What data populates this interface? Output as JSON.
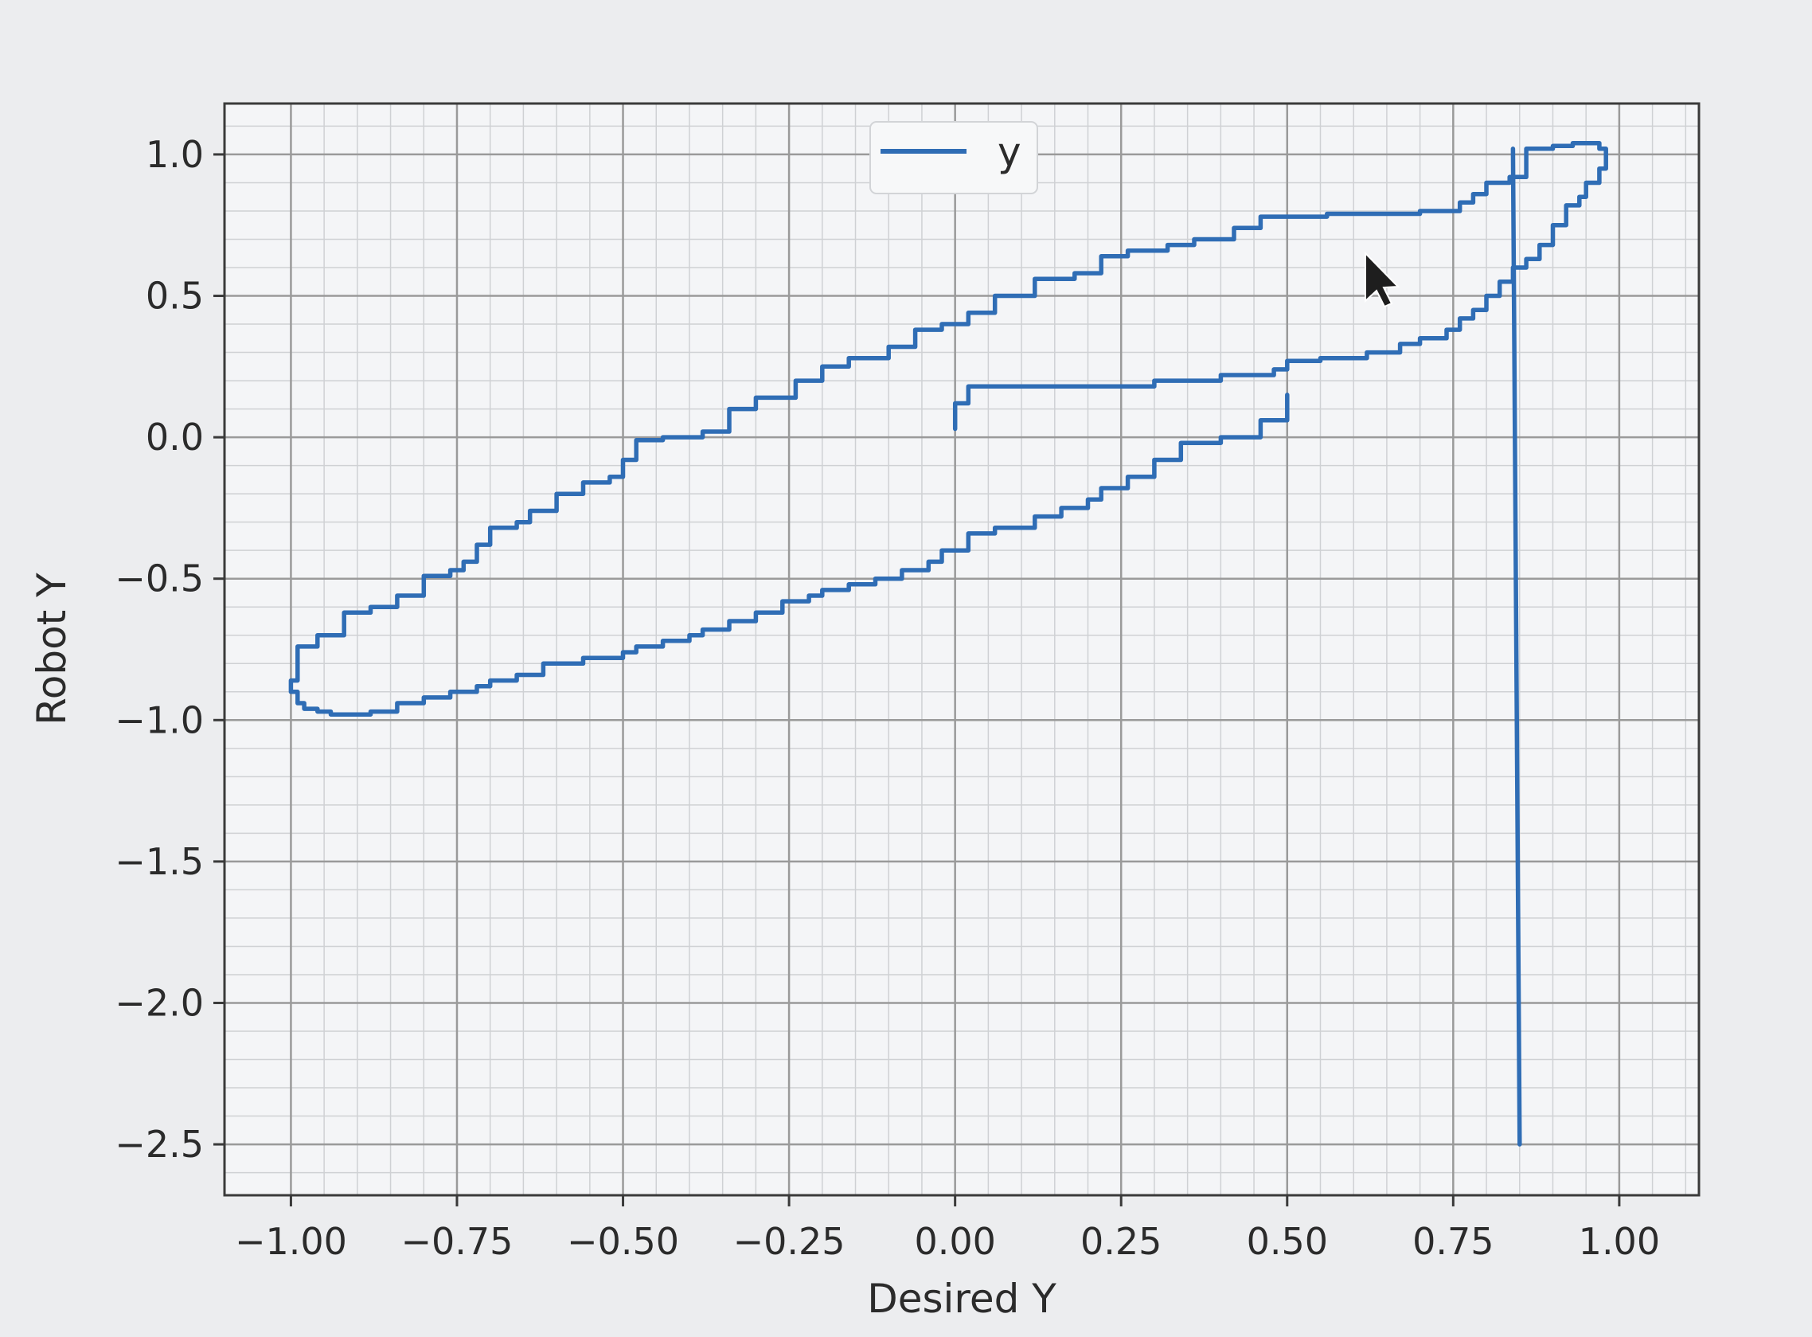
{
  "colors": {
    "series": "#2f6db5",
    "grid_major": "#9a9a9a",
    "grid_minor": "#cfd1d4",
    "axes": "#3a3a3a",
    "background": "#ecedef"
  },
  "chart_data": {
    "type": "line",
    "title": "",
    "xlabel": "Desired Y",
    "ylabel": "Robot Y",
    "xlim": [
      -1.1,
      1.12
    ],
    "ylim": [
      -2.68,
      1.18
    ],
    "xticks": [
      -1.0,
      -0.75,
      -0.5,
      -0.25,
      0.0,
      0.25,
      0.5,
      0.75,
      1.0
    ],
    "xtick_labels": [
      "−1.00",
      "−0.75",
      "−0.50",
      "−0.25",
      "0.00",
      "0.25",
      "0.50",
      "0.75",
      "1.00"
    ],
    "yticks": [
      1.0,
      0.5,
      0.0,
      -0.5,
      -1.0,
      -1.5,
      -2.0,
      -2.5
    ],
    "ytick_labels": [
      "1.0",
      "0.5",
      "0.0",
      "−0.5",
      "−1.0",
      "−1.5",
      "−2.0",
      "−2.5"
    ],
    "grid": true,
    "minor_grid": true,
    "legend_position": "upper-center",
    "series": [
      {
        "name": "y",
        "x": [
          0.0,
          0.0,
          0.02,
          0.04,
          0.2,
          0.3,
          0.35,
          0.4,
          0.48,
          0.5,
          0.55,
          0.62,
          0.67,
          0.7,
          0.74,
          0.76,
          0.78,
          0.8,
          0.82,
          0.84,
          0.86,
          0.88,
          0.9,
          0.92,
          0.94,
          0.95,
          0.97,
          0.98,
          0.98,
          0.97,
          0.96,
          0.95,
          0.93,
          0.9,
          0.88,
          0.86,
          0.86,
          0.84,
          0.835,
          0.8,
          0.78,
          0.76,
          0.72,
          0.7,
          0.66,
          0.62,
          0.56,
          0.5,
          0.46,
          0.42,
          0.36,
          0.32,
          0.26,
          0.22,
          0.18,
          0.12,
          0.06,
          0.02,
          -0.02,
          -0.06,
          -0.1,
          -0.16,
          -0.2,
          -0.24,
          -0.3,
          -0.34,
          -0.38,
          -0.44,
          -0.48,
          -0.5,
          -0.52,
          -0.56,
          -0.6,
          -0.64,
          -0.66,
          -0.7,
          -0.72,
          -0.74,
          -0.76,
          -0.8,
          -0.84,
          -0.88,
          -0.92,
          -0.96,
          -0.99,
          -1.0,
          -0.99,
          -0.98,
          -0.96,
          -0.94,
          -0.92,
          -0.9,
          -0.88,
          -0.84,
          -0.8,
          -0.76,
          -0.72,
          -0.7,
          -0.66,
          -0.62,
          -0.56,
          -0.5,
          -0.48,
          -0.44,
          -0.4,
          -0.38,
          -0.34,
          -0.3,
          -0.26,
          -0.22,
          -0.2,
          -0.16,
          -0.12,
          -0.08,
          -0.04,
          -0.02,
          0.02,
          0.06,
          0.12,
          0.16,
          0.2,
          0.22,
          0.26,
          0.3,
          0.34,
          0.4,
          0.46,
          0.5
        ],
        "y": [
          0.03,
          0.12,
          0.18,
          0.18,
          0.18,
          0.2,
          0.2,
          0.22,
          0.24,
          0.27,
          0.28,
          0.3,
          0.33,
          0.35,
          0.38,
          0.42,
          0.45,
          0.5,
          0.55,
          0.6,
          0.63,
          0.68,
          0.75,
          0.82,
          0.85,
          0.9,
          0.95,
          0.98,
          1.02,
          1.04,
          1.04,
          1.04,
          1.03,
          1.02,
          1.02,
          1.02,
          0.92,
          0.92,
          0.9,
          0.86,
          0.83,
          0.8,
          0.8,
          0.79,
          0.79,
          0.79,
          0.78,
          0.78,
          0.74,
          0.7,
          0.68,
          0.66,
          0.64,
          0.58,
          0.56,
          0.5,
          0.44,
          0.4,
          0.38,
          0.32,
          0.28,
          0.25,
          0.2,
          0.14,
          0.1,
          0.02,
          0.0,
          -0.01,
          -0.08,
          -0.14,
          -0.16,
          -0.2,
          -0.26,
          -0.3,
          -0.32,
          -0.38,
          -0.44,
          -0.47,
          -0.49,
          -0.56,
          -0.6,
          -0.62,
          -0.7,
          -0.74,
          -0.86,
          -0.9,
          -0.94,
          -0.96,
          -0.97,
          -0.98,
          -0.98,
          -0.98,
          -0.97,
          -0.94,
          -0.92,
          -0.9,
          -0.88,
          -0.86,
          -0.84,
          -0.8,
          -0.78,
          -0.76,
          -0.74,
          -0.72,
          -0.7,
          -0.68,
          -0.65,
          -0.62,
          -0.58,
          -0.56,
          -0.54,
          -0.52,
          -0.5,
          -0.47,
          -0.44,
          -0.4,
          -0.34,
          -0.32,
          -0.28,
          -0.25,
          -0.22,
          -0.18,
          -0.14,
          -0.08,
          -0.02,
          0.0,
          0.06,
          0.15
        ]
      }
    ]
  }
}
